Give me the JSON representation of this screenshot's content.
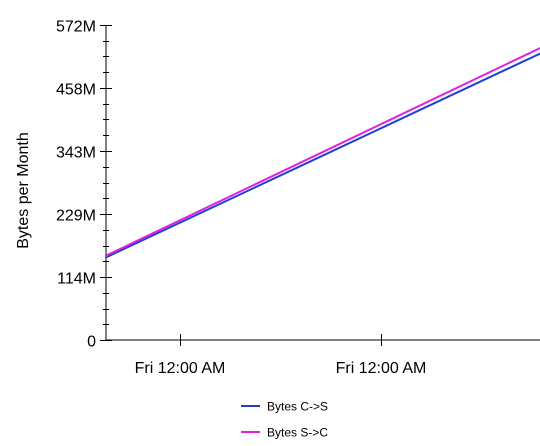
{
  "chart_data": {
    "type": "line",
    "title": "",
    "xlabel": "",
    "ylabel": "Bytes per Month",
    "ylim": [
      0,
      572
    ],
    "y_ticks": [
      {
        "value": 0,
        "label": "0"
      },
      {
        "value": 114,
        "label": "114M"
      },
      {
        "value": 229,
        "label": "229M"
      },
      {
        "value": 343,
        "label": "343M"
      },
      {
        "value": 458,
        "label": "458M"
      },
      {
        "value": 572,
        "label": "572M"
      }
    ],
    "y_minor_step": 28.6,
    "x_ticks": [
      "Fri 12:00 AM",
      "Fri 12:00 AM"
    ],
    "grid": false,
    "legend_position": "bottom",
    "series": [
      {
        "name": "Bytes C->S",
        "color": "#1f3fd6",
        "values": [
          150,
          520
        ]
      },
      {
        "name": "Bytes S->C",
        "color": "#e020e0",
        "values": [
          153,
          530
        ]
      }
    ]
  }
}
